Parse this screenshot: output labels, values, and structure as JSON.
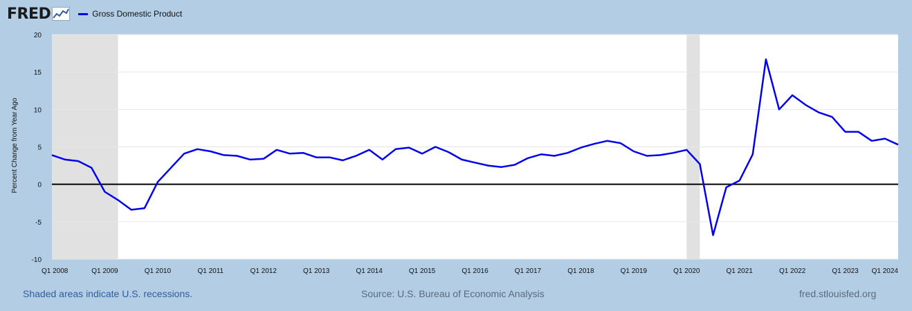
{
  "header": {
    "logo_text": "FRED",
    "logo_icon": "line-chart-icon",
    "legend_label": "Gross Domestic Product"
  },
  "footer": {
    "recession_note": "Shaded areas indicate U.S. recessions.",
    "source": "Source: U.S. Bureau of Economic Analysis",
    "site": "fred.stlouisfed.org"
  },
  "colors": {
    "background": "#b3cde4",
    "plot_background": "#ffffff",
    "series": "#0000ee",
    "recession": "#e1e1e1",
    "zero_line": "#000000",
    "grid": "#e6e6e6"
  },
  "chart_data": {
    "type": "line",
    "title": "",
    "xlabel": "",
    "ylabel": "Percent Change from Year Ago",
    "ylim": [
      -10,
      20
    ],
    "yticks": [
      -10,
      -5,
      0,
      5,
      10,
      15,
      20
    ],
    "x_range": [
      "Q1 2008",
      "Q1 2024"
    ],
    "xticks": [
      "Q1 2008",
      "Q1 2009",
      "Q1 2010",
      "Q1 2011",
      "Q1 2012",
      "Q1 2013",
      "Q1 2014",
      "Q1 2015",
      "Q1 2016",
      "Q1 2017",
      "Q1 2018",
      "Q1 2019",
      "Q1 2020",
      "Q1 2021",
      "Q1 2022",
      "Q1 2023",
      "Q1 2024"
    ],
    "grid": true,
    "legend": "top-left",
    "recessions": [
      {
        "start": "Q1 2008",
        "end": "Q2 2009"
      },
      {
        "start": "Q1 2020",
        "end": "Q2 2020"
      }
    ],
    "series": [
      {
        "name": "Gross Domestic Product",
        "x": [
          "Q1 2008",
          "Q2 2008",
          "Q3 2008",
          "Q4 2008",
          "Q1 2009",
          "Q2 2009",
          "Q3 2009",
          "Q4 2009",
          "Q1 2010",
          "Q2 2010",
          "Q3 2010",
          "Q4 2010",
          "Q1 2011",
          "Q2 2011",
          "Q3 2011",
          "Q4 2011",
          "Q1 2012",
          "Q2 2012",
          "Q3 2012",
          "Q4 2012",
          "Q1 2013",
          "Q2 2013",
          "Q3 2013",
          "Q4 2013",
          "Q1 2014",
          "Q2 2014",
          "Q3 2014",
          "Q4 2014",
          "Q1 2015",
          "Q2 2015",
          "Q3 2015",
          "Q4 2015",
          "Q1 2016",
          "Q2 2016",
          "Q3 2016",
          "Q4 2016",
          "Q1 2017",
          "Q2 2017",
          "Q3 2017",
          "Q4 2017",
          "Q1 2018",
          "Q2 2018",
          "Q3 2018",
          "Q4 2018",
          "Q1 2019",
          "Q2 2019",
          "Q3 2019",
          "Q4 2019",
          "Q1 2020",
          "Q2 2020",
          "Q3 2020",
          "Q4 2020",
          "Q1 2021",
          "Q2 2021",
          "Q3 2021",
          "Q4 2021",
          "Q1 2022",
          "Q2 2022",
          "Q3 2022",
          "Q4 2022",
          "Q1 2023",
          "Q2 2023",
          "Q3 2023",
          "Q4 2023",
          "Q1 2024"
        ],
        "values": [
          3.9,
          3.3,
          3.1,
          2.2,
          -1.0,
          -2.1,
          -3.4,
          -3.2,
          0.3,
          2.2,
          4.1,
          4.7,
          4.4,
          3.9,
          3.8,
          3.3,
          3.4,
          4.6,
          4.1,
          4.2,
          3.6,
          3.6,
          3.2,
          3.8,
          4.6,
          3.3,
          4.7,
          4.9,
          4.1,
          5.0,
          4.3,
          3.3,
          2.9,
          2.5,
          2.3,
          2.6,
          3.5,
          4.0,
          3.8,
          4.2,
          4.9,
          5.4,
          5.8,
          5.5,
          4.4,
          3.8,
          3.9,
          4.2,
          4.6,
          2.7,
          -6.8,
          -0.4,
          0.5,
          4.0,
          16.7,
          10.0,
          11.9,
          10.6,
          9.6,
          9.0,
          7.0,
          7.0,
          5.8,
          6.1,
          5.3
        ]
      }
    ]
  }
}
